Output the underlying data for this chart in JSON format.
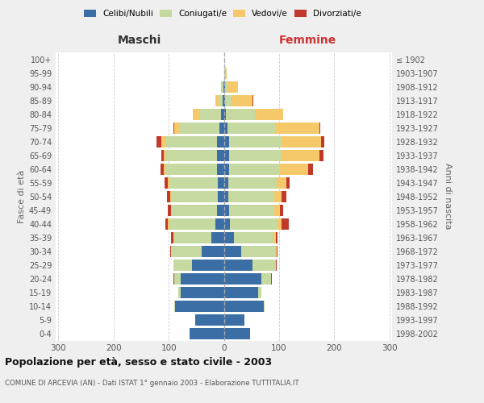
{
  "age_groups": [
    "0-4",
    "5-9",
    "10-14",
    "15-19",
    "20-24",
    "25-29",
    "30-34",
    "35-39",
    "40-44",
    "45-49",
    "50-54",
    "55-59",
    "60-64",
    "65-69",
    "70-74",
    "75-79",
    "80-84",
    "85-89",
    "90-94",
    "95-99",
    "100+"
  ],
  "birth_years": [
    "1998-2002",
    "1993-1997",
    "1988-1992",
    "1983-1987",
    "1978-1982",
    "1973-1977",
    "1968-1972",
    "1963-1967",
    "1958-1962",
    "1953-1957",
    "1948-1952",
    "1943-1947",
    "1938-1942",
    "1933-1937",
    "1928-1932",
    "1923-1927",
    "1918-1922",
    "1913-1917",
    "1908-1912",
    "1903-1907",
    "≤ 1902"
  ],
  "males": {
    "celibe": [
      62,
      52,
      88,
      78,
      78,
      58,
      40,
      22,
      15,
      12,
      11,
      11,
      12,
      13,
      13,
      8,
      5,
      2,
      1,
      0,
      0
    ],
    "coniugato": [
      0,
      0,
      2,
      4,
      12,
      33,
      55,
      68,
      84,
      82,
      83,
      88,
      93,
      92,
      92,
      72,
      38,
      8,
      2,
      0,
      0
    ],
    "vedovo": [
      0,
      0,
      0,
      0,
      0,
      0,
      1,
      2,
      2,
      2,
      3,
      3,
      4,
      4,
      9,
      10,
      14,
      5,
      2,
      0,
      0
    ],
    "divorziato": [
      0,
      0,
      0,
      0,
      1,
      1,
      2,
      4,
      5,
      5,
      6,
      5,
      6,
      5,
      8,
      2,
      0,
      0,
      0,
      0,
      0
    ]
  },
  "females": {
    "nubile": [
      48,
      38,
      72,
      62,
      68,
      52,
      32,
      18,
      11,
      9,
      8,
      8,
      9,
      9,
      10,
      7,
      4,
      2,
      2,
      0,
      0
    ],
    "coniugata": [
      0,
      0,
      2,
      6,
      18,
      42,
      62,
      72,
      86,
      82,
      83,
      88,
      92,
      96,
      95,
      88,
      52,
      12,
      4,
      2,
      0
    ],
    "vedova": [
      0,
      0,
      0,
      0,
      0,
      1,
      2,
      4,
      7,
      11,
      14,
      18,
      52,
      68,
      72,
      78,
      52,
      38,
      20,
      3,
      0
    ],
    "divorziata": [
      0,
      0,
      0,
      0,
      1,
      1,
      2,
      4,
      14,
      5,
      8,
      5,
      9,
      8,
      5,
      2,
      0,
      2,
      0,
      0,
      0
    ]
  },
  "colors": {
    "celibe": "#3a6ea5",
    "coniugato": "#c5d9a0",
    "vedovo": "#f5c96a",
    "divorziato": "#c0392b"
  },
  "title": "Popolazione per età, sesso e stato civile - 2003",
  "subtitle": "COMUNE DI ARCEVIA (AN) - Dati ISTAT 1° gennaio 2003 - Elaborazione TUTTITALIA.IT",
  "xlabel_left": "Maschi",
  "xlabel_right": "Femmine",
  "ylabel_left": "Fasce di età",
  "ylabel_right": "Anni di nascita",
  "xlim": 305,
  "background_color": "#efefef",
  "plot_bg": "#ffffff"
}
